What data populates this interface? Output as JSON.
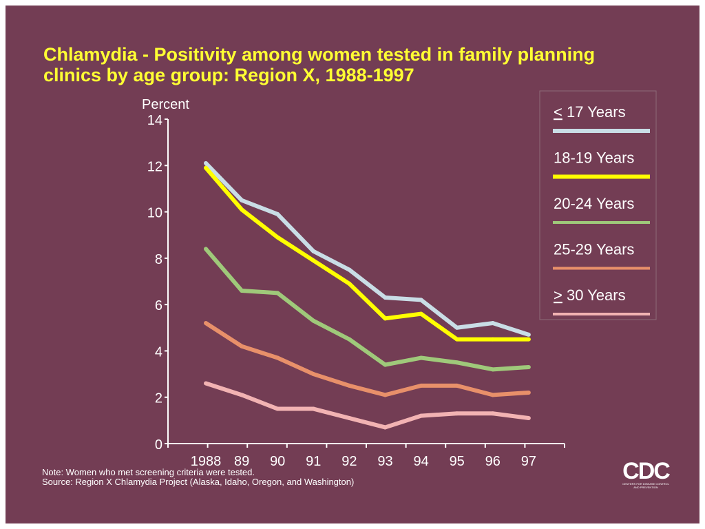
{
  "title": {
    "line1": "Chlamydia - Positivity among women tested in family planning",
    "line2": "clinics by age group:  Region X, 1988-1997"
  },
  "chart_data": {
    "type": "line",
    "title": "Chlamydia - Positivity among women tested in family planning clinics by age group:  Region X, 1988-1997",
    "ylabel": "Percent",
    "xlabel": "",
    "x": [
      "1988",
      "89",
      "90",
      "91",
      "92",
      "93",
      "94",
      "95",
      "96",
      "97"
    ],
    "ylim": [
      0,
      14
    ],
    "yticks": [
      0,
      2,
      4,
      6,
      8,
      10,
      12,
      14
    ],
    "grid": false,
    "legend_position": "right",
    "series": [
      {
        "name": "< 17 Years",
        "color": "#c9dde6",
        "values": [
          12.1,
          10.5,
          9.9,
          8.3,
          7.5,
          6.3,
          6.2,
          5.0,
          5.2,
          4.7
        ]
      },
      {
        "name": "18-19 Years",
        "color": "#ffff00",
        "values": [
          11.9,
          10.1,
          8.9,
          7.9,
          6.9,
          5.4,
          5.6,
          4.5,
          4.5,
          4.5
        ]
      },
      {
        "name": "20-24 Years",
        "color": "#9fc97a",
        "values": [
          8.4,
          6.6,
          6.5,
          5.3,
          4.5,
          3.4,
          3.7,
          3.5,
          3.2,
          3.3
        ]
      },
      {
        "name": "25-29 Years",
        "color": "#e8906a",
        "values": [
          5.2,
          4.2,
          3.7,
          3.0,
          2.5,
          2.1,
          2.5,
          2.5,
          2.1,
          2.2
        ]
      },
      {
        "name": "> 30 Years",
        "color": "#f2b3b3",
        "values": [
          2.6,
          2.1,
          1.5,
          1.5,
          1.1,
          0.7,
          1.2,
          1.3,
          1.3,
          1.1
        ]
      }
    ]
  },
  "legend": {
    "items": [
      {
        "prefix": "<",
        "text": " 17 Years"
      },
      {
        "prefix": "",
        "text": "18-19 Years"
      },
      {
        "prefix": "",
        "text": "20-24 Years"
      },
      {
        "prefix": "",
        "text": "25-29 Years"
      },
      {
        "prefix": ">",
        "text": " 30 Years"
      }
    ]
  },
  "footer": {
    "note": "Note:  Women who met screening criteria were tested.",
    "source": "Source:  Region X Chlamydia Project (Alaska, Idaho, Oregon, and Washington)"
  },
  "logo": {
    "letters": "CDC",
    "subtext": "CENTERS FOR DISEASE CONTROL AND PREVENTION"
  }
}
